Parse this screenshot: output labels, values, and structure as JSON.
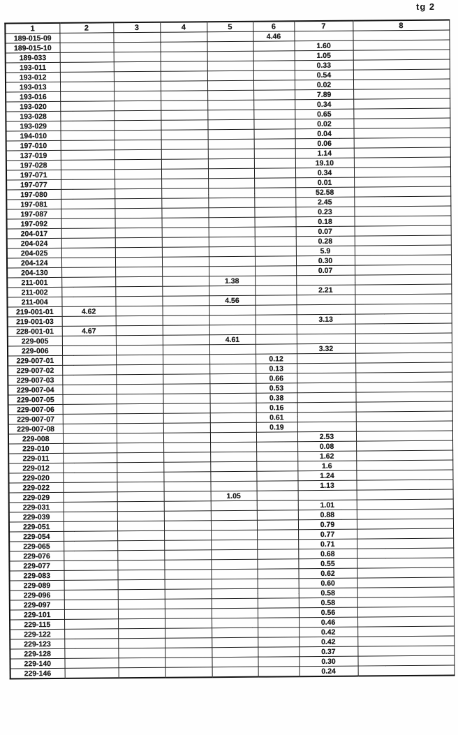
{
  "page": {
    "corner_label": "tg 2"
  },
  "table": {
    "columns": [
      "1",
      "2",
      "3",
      "4",
      "5",
      "6",
      "7",
      "8"
    ],
    "rows": [
      {
        "id": "189-015-09",
        "col": 6,
        "value": "4.46"
      },
      {
        "id": "189-015-10",
        "col": 7,
        "value": "1.60"
      },
      {
        "id": "189-033",
        "col": 7,
        "value": "1.05"
      },
      {
        "id": "193-011",
        "col": 7,
        "value": "0.33"
      },
      {
        "id": "193-012",
        "col": 7,
        "value": "0.54"
      },
      {
        "id": "193-013",
        "col": 7,
        "value": "0.02"
      },
      {
        "id": "193-016",
        "col": 7,
        "value": "7.89"
      },
      {
        "id": "193-020",
        "col": 7,
        "value": "0.34"
      },
      {
        "id": "193-028",
        "col": 7,
        "value": "0.65"
      },
      {
        "id": "193-029",
        "col": 7,
        "value": "0.02"
      },
      {
        "id": "194-010",
        "col": 7,
        "value": "0.04"
      },
      {
        "id": "197-010",
        "col": 7,
        "value": "0.06"
      },
      {
        "id": "137-019",
        "col": 7,
        "value": "1.14"
      },
      {
        "id": "197-028",
        "col": 7,
        "value": "19.10"
      },
      {
        "id": "197-071",
        "col": 7,
        "value": "0.34"
      },
      {
        "id": "197-077",
        "col": 7,
        "value": "0.01"
      },
      {
        "id": "197-080",
        "col": 7,
        "value": "52.58"
      },
      {
        "id": "197-081",
        "col": 7,
        "value": "2.45"
      },
      {
        "id": "197-087",
        "col": 7,
        "value": "0.23"
      },
      {
        "id": "197-092",
        "col": 7,
        "value": "0.18"
      },
      {
        "id": "204-017",
        "col": 7,
        "value": "0.07"
      },
      {
        "id": "204-024",
        "col": 7,
        "value": "0.28"
      },
      {
        "id": "204-025",
        "col": 7,
        "value": "5.9"
      },
      {
        "id": "204-124",
        "col": 7,
        "value": "0.30"
      },
      {
        "id": "204-130",
        "col": 7,
        "value": "0.07"
      },
      {
        "id": "211-001",
        "col": 5,
        "value": "1.38"
      },
      {
        "id": "211-002",
        "col": 7,
        "value": "2.21"
      },
      {
        "id": "211-004",
        "col": 5,
        "value": "4.56"
      },
      {
        "id": "219-001-01",
        "col": 2,
        "value": "4.62"
      },
      {
        "id": "219-001-03",
        "col": 7,
        "value": "3.13"
      },
      {
        "id": "228-001-01",
        "col": 2,
        "value": "4.67"
      },
      {
        "id": "229-005",
        "col": 5,
        "value": "4.61"
      },
      {
        "id": "229-006",
        "col": 7,
        "value": "3.32"
      },
      {
        "id": "229-007-01",
        "col": 6,
        "value": "0.12"
      },
      {
        "id": "229-007-02",
        "col": 6,
        "value": "0.13"
      },
      {
        "id": "229-007-03",
        "col": 6,
        "value": "0.66"
      },
      {
        "id": "229-007-04",
        "col": 6,
        "value": "0.53"
      },
      {
        "id": "229-007-05",
        "col": 6,
        "value": "0.38"
      },
      {
        "id": "229-007-06",
        "col": 6,
        "value": "0.16"
      },
      {
        "id": "229-007-07",
        "col": 6,
        "value": "0.61"
      },
      {
        "id": "229-007-08",
        "col": 6,
        "value": "0.19"
      },
      {
        "id": "229-008",
        "col": 7,
        "value": "2.53"
      },
      {
        "id": "229-010",
        "col": 7,
        "value": "0.08"
      },
      {
        "id": "229-011",
        "col": 7,
        "value": "1.62"
      },
      {
        "id": "229-012",
        "col": 7,
        "value": "1.6"
      },
      {
        "id": "229-020",
        "col": 7,
        "value": "1.24"
      },
      {
        "id": "229-022",
        "col": 7,
        "value": "1.13"
      },
      {
        "id": "229-029",
        "col": 5,
        "value": "1.05"
      },
      {
        "id": "229-031",
        "col": 7,
        "value": "1.01"
      },
      {
        "id": "229-039",
        "col": 7,
        "value": "0.88"
      },
      {
        "id": "229-051",
        "col": 7,
        "value": "0.79"
      },
      {
        "id": "229-054",
        "col": 7,
        "value": "0.77"
      },
      {
        "id": "229-065",
        "col": 7,
        "value": "0.71"
      },
      {
        "id": "229-076",
        "col": 7,
        "value": "0.68"
      },
      {
        "id": "229-077",
        "col": 7,
        "value": "0.55"
      },
      {
        "id": "229-083",
        "col": 7,
        "value": "0.62"
      },
      {
        "id": "229-089",
        "col": 7,
        "value": "0.60"
      },
      {
        "id": "229-096",
        "col": 7,
        "value": "0.58"
      },
      {
        "id": "229-097",
        "col": 7,
        "value": "0.58"
      },
      {
        "id": "229-101",
        "col": 7,
        "value": "0.56"
      },
      {
        "id": "229-115",
        "col": 7,
        "value": "0.46"
      },
      {
        "id": "229-122",
        "col": 7,
        "value": "0.42"
      },
      {
        "id": "229-123",
        "col": 7,
        "value": "0.42"
      },
      {
        "id": "229-128",
        "col": 7,
        "value": "0.37"
      },
      {
        "id": "229-140",
        "col": 7,
        "value": "0.30"
      },
      {
        "id": "229-146",
        "col": 7,
        "value": "0.24"
      }
    ]
  }
}
